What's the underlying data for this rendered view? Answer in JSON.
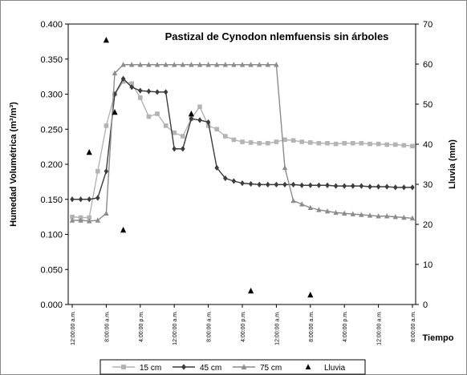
{
  "chart_data": {
    "type": "line",
    "title": "Pastizal de Cynodon nlemfuensis sin árboles",
    "y_label": "Humedad Volumétrica (m³/m³)",
    "y2_label": "Lluvia (mm)",
    "x_label": "Tiempo",
    "categories": [
      "12:00:00 a.m.",
      null,
      null,
      null,
      "8:00:00 a.m.",
      null,
      null,
      null,
      "4:00:00 p.m.",
      null,
      null,
      null,
      "12:00:00 a.m.",
      null,
      null,
      null,
      "8:00:00 a.m.",
      null,
      null,
      null,
      "4:00:00 p.m.",
      null,
      null,
      null,
      "12:00:00 a.m.",
      null,
      null,
      null,
      "8:00:00 a.m.",
      null,
      null,
      null,
      "4:00:00 p.m.",
      null,
      null,
      null,
      "12:00:00 a.m.",
      null,
      null,
      null,
      "8:00:00 a.m."
    ],
    "ylim": [
      0,
      0.4
    ],
    "yticks": [
      {
        "value": 0,
        "label": "0.000"
      },
      {
        "value": 0.05,
        "label": "0.050"
      },
      {
        "value": 0.1,
        "label": "0.100"
      },
      {
        "value": 0.15,
        "label": "0.150"
      },
      {
        "value": 0.2,
        "label": "0.200"
      },
      {
        "value": 0.25,
        "label": "0.250"
      },
      {
        "value": 0.3,
        "label": "0.300"
      },
      {
        "value": 0.35,
        "label": "0.350"
      },
      {
        "value": 0.4,
        "label": "0.400"
      }
    ],
    "y2lim": [
      0,
      70
    ],
    "y2ticks": [
      0,
      10,
      20,
      30,
      40,
      50,
      60,
      70
    ],
    "series": [
      {
        "name": "15 cm",
        "color": "#b4b4b4",
        "marker": "square",
        "line": true,
        "values": [
          0.125,
          0.124,
          0.124,
          0.19,
          0.255,
          0.3,
          0.318,
          0.315,
          0.295,
          0.268,
          0.272,
          0.255,
          0.245,
          0.24,
          0.265,
          0.282,
          0.255,
          0.25,
          0.24,
          0.235,
          0.232,
          0.231,
          0.23,
          0.23,
          0.232,
          0.235,
          0.234,
          0.232,
          0.231,
          0.23,
          0.23,
          0.229,
          0.23,
          0.23,
          0.23,
          0.229,
          0.229,
          0.228,
          0.228,
          0.227,
          0.226
        ]
      },
      {
        "name": "45 cm",
        "color": "#3c3c3c",
        "marker": "diamond",
        "line": true,
        "values": [
          0.15,
          0.15,
          0.15,
          0.152,
          0.19,
          0.3,
          0.322,
          0.31,
          0.305,
          0.304,
          0.303,
          0.303,
          0.222,
          0.222,
          0.265,
          0.263,
          0.26,
          0.195,
          0.18,
          0.176,
          0.173,
          0.172,
          0.171,
          0.171,
          0.171,
          0.171,
          0.171,
          0.17,
          0.17,
          0.17,
          0.17,
          0.169,
          0.169,
          0.169,
          0.169,
          0.168,
          0.168,
          0.168,
          0.167,
          0.167,
          0.167
        ]
      },
      {
        "name": "75 cm",
        "color": "#8c8c8c",
        "marker": "triangle",
        "line": true,
        "values": [
          0.12,
          0.12,
          0.119,
          0.12,
          0.13,
          0.33,
          0.342,
          0.342,
          0.342,
          0.342,
          0.342,
          0.342,
          0.342,
          0.342,
          0.342,
          0.342,
          0.342,
          0.342,
          0.342,
          0.342,
          0.342,
          0.342,
          0.342,
          0.342,
          0.342,
          0.195,
          0.148,
          0.143,
          0.138,
          0.135,
          0.133,
          0.131,
          0.13,
          0.129,
          0.128,
          0.127,
          0.126,
          0.126,
          0.125,
          0.124,
          0.123
        ]
      },
      {
        "name": "Lluvia",
        "color": "#000000",
        "marker": "triangle",
        "line": false,
        "axis": "y2",
        "values": [
          null,
          null,
          38,
          null,
          66,
          48,
          18.6,
          null,
          null,
          null,
          null,
          null,
          null,
          null,
          47.6,
          null,
          null,
          null,
          null,
          null,
          null,
          3.4,
          null,
          null,
          null,
          null,
          null,
          null,
          2.4,
          null,
          null,
          null,
          null,
          null,
          null,
          null,
          null,
          null,
          null,
          null,
          null
        ]
      }
    ]
  }
}
